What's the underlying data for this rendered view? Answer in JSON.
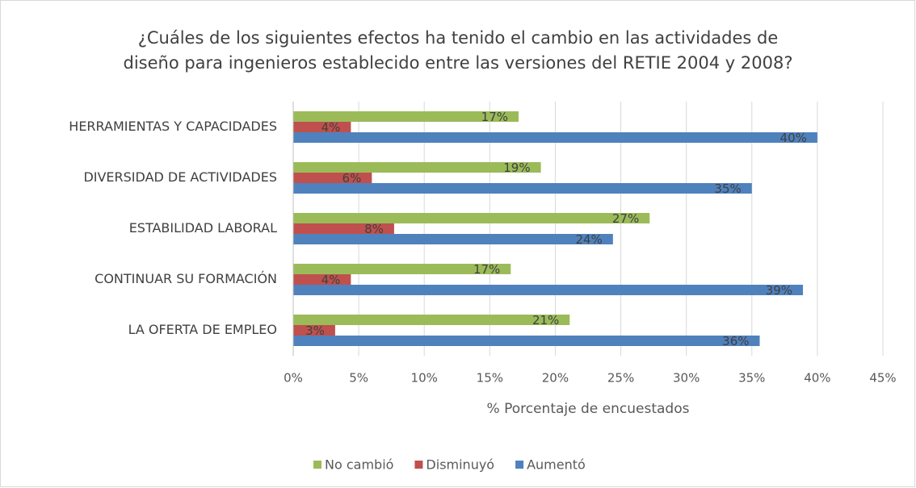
{
  "chart_data": {
    "type": "barh",
    "title": [
      "¿Cuáles de los siguientes efectos ha tenido el cambio en las actividades de",
      "diseño para ingenieros establecido entre las versiones del RETIE 2004 y 2008?"
    ],
    "xlabel": "% Porcentaje de encuestados",
    "categories": [
      "HERRAMIENTAS Y CAPACIDADES",
      "DIVERSIDAD DE ACTIVIDADES",
      "ESTABILIDAD LABORAL",
      "CONTINUAR SU FORMACIÓN",
      "LA OFERTA DE EMPLEO"
    ],
    "series": [
      {
        "name": "No cambió",
        "color": "#9bbb59",
        "values": [
          17.2,
          18.9,
          27.2,
          16.6,
          21.1
        ],
        "value_labels": [
          "17%",
          "19%",
          "27%",
          "17%",
          "21%"
        ]
      },
      {
        "name": "Disminuyó",
        "color": "#c0504d",
        "values": [
          4.4,
          6.0,
          7.7,
          4.4,
          3.2
        ],
        "value_labels": [
          "4%",
          "6%",
          "8%",
          "4%",
          "3%"
        ]
      },
      {
        "name": "Aumentó",
        "color": "#4f81bd",
        "values": [
          40.0,
          35.0,
          24.4,
          38.9,
          35.6
        ],
        "value_labels": [
          "40%",
          "35%",
          "24%",
          "39%",
          "36%"
        ]
      }
    ],
    "xlim": [
      0,
      45
    ],
    "xticks": [
      {
        "value": 0,
        "label": "0%"
      },
      {
        "value": 5,
        "label": "5%"
      },
      {
        "value": 10,
        "label": "10%"
      },
      {
        "value": 15,
        "label": "15%"
      },
      {
        "value": 20,
        "label": "20%"
      },
      {
        "value": 25,
        "label": "25%"
      },
      {
        "value": 30,
        "label": "30%"
      },
      {
        "value": 35,
        "label": "35%"
      },
      {
        "value": 40,
        "label": "40%"
      },
      {
        "value": 45,
        "label": "45%"
      }
    ],
    "grid": true,
    "legend": "bottom"
  }
}
